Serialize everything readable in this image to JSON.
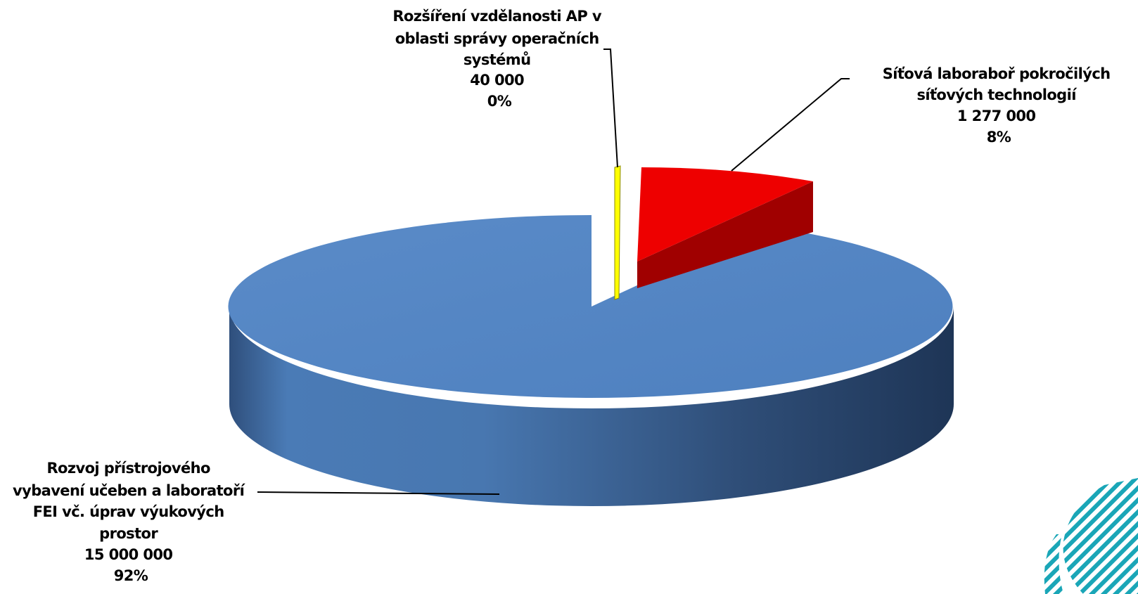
{
  "chart_data": {
    "type": "pie",
    "style": "3d-exploded",
    "slices": [
      {
        "label_lines": [
          "Rozvoj přístrojového",
          "vybavení učeben a laboratoří",
          "FEI vč. úprav výukových",
          "prostor"
        ],
        "value_text": "15 000 000",
        "percent_text": "92%",
        "value": 15000000,
        "color": "#4F81BD",
        "side_color": "#2E4B73"
      },
      {
        "label_lines": [
          "Rozšíření vzdělanosti AP v",
          "oblasti správy operačních",
          "systémů"
        ],
        "value_text": "40 000",
        "percent_text": "0%",
        "value": 40000,
        "color": "#FFFF00",
        "side_color": "#B8B800"
      },
      {
        "label_lines": [
          "Síťová laboraboř pokročilých",
          "síťových technologií"
        ],
        "value_text": "1 277 000",
        "percent_text": "8%",
        "value": 1277000,
        "color": "#EE0000",
        "side_color": "#A00000"
      }
    ]
  },
  "decoration": {
    "logo_icon": "striped-leaf-logo",
    "logo_color": "#1AA6B7"
  }
}
